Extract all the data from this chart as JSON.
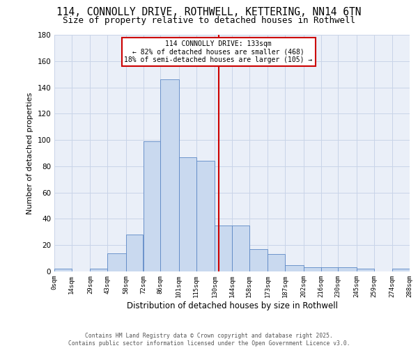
{
  "title_line1": "114, CONNOLLY DRIVE, ROTHWELL, KETTERING, NN14 6TN",
  "title_line2": "Size of property relative to detached houses in Rothwell",
  "xlabel": "Distribution of detached houses by size in Rothwell",
  "ylabel": "Number of detached properties",
  "bin_edges": [
    0,
    14,
    29,
    43,
    58,
    72,
    86,
    101,
    115,
    130,
    144,
    158,
    173,
    187,
    202,
    216,
    230,
    245,
    259,
    274,
    288
  ],
  "hist_values": [
    2,
    0,
    2,
    14,
    28,
    99,
    146,
    87,
    84,
    35,
    35,
    17,
    13,
    5,
    3,
    3,
    3,
    2,
    0,
    2
  ],
  "bar_color": "#c9d9ef",
  "bar_edge_color": "#5b87c5",
  "vline_x": 133,
  "vline_color": "#cc0000",
  "annotation_text": "114 CONNOLLY DRIVE: 133sqm\n← 82% of detached houses are smaller (468)\n18% of semi-detached houses are larger (105) →",
  "annotation_bbox_edgecolor": "#cc0000",
  "ylim": [
    0,
    180
  ],
  "yticks": [
    0,
    20,
    40,
    60,
    80,
    100,
    120,
    140,
    160,
    180
  ],
  "xtick_labels": [
    "0sqm",
    "14sqm",
    "29sqm",
    "43sqm",
    "58sqm",
    "72sqm",
    "86sqm",
    "101sqm",
    "115sqm",
    "130sqm",
    "144sqm",
    "158sqm",
    "173sqm",
    "187sqm",
    "202sqm",
    "216sqm",
    "230sqm",
    "245sqm",
    "259sqm",
    "274sqm",
    "288sqm"
  ],
  "grid_color": "#c8d4e8",
  "bg_color": "#eaeff8",
  "footer_text": "Contains HM Land Registry data © Crown copyright and database right 2025.\nContains public sector information licensed under the Open Government Licence v3.0."
}
